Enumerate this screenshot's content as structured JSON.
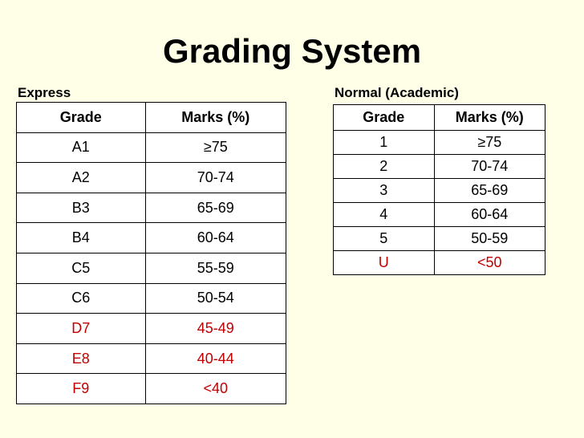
{
  "title": "Grading System",
  "express": {
    "caption": "Express",
    "headers": [
      "Grade",
      "Marks (%)"
    ],
    "rows": [
      {
        "grade": "A1",
        "marks": "≥75",
        "fail": false
      },
      {
        "grade": "A2",
        "marks": "70-74",
        "fail": false
      },
      {
        "grade": "B3",
        "marks": "65-69",
        "fail": false
      },
      {
        "grade": "B4",
        "marks": "60-64",
        "fail": false
      },
      {
        "grade": "C5",
        "marks": "55-59",
        "fail": false
      },
      {
        "grade": "C6",
        "marks": "50-54",
        "fail": false
      },
      {
        "grade": "D7",
        "marks": "45-49",
        "fail": true
      },
      {
        "grade": "E8",
        "marks": "40-44",
        "fail": true
      },
      {
        "grade": "F9",
        "marks": "<40",
        "fail": true
      }
    ]
  },
  "normal": {
    "caption": "Normal (Academic)",
    "headers": [
      "Grade",
      "Marks (%)"
    ],
    "rows": [
      {
        "grade": "1",
        "marks": "≥75",
        "fail": false
      },
      {
        "grade": "2",
        "marks": "70-74",
        "fail": false
      },
      {
        "grade": "3",
        "marks": "65-69",
        "fail": false
      },
      {
        "grade": "4",
        "marks": "60-64",
        "fail": false
      },
      {
        "grade": "5",
        "marks": "50-59",
        "fail": false
      },
      {
        "grade": "U",
        "marks": "<50",
        "fail": true
      }
    ]
  },
  "colors": {
    "background": "#ffffe8",
    "fail_text": "#c00000"
  }
}
